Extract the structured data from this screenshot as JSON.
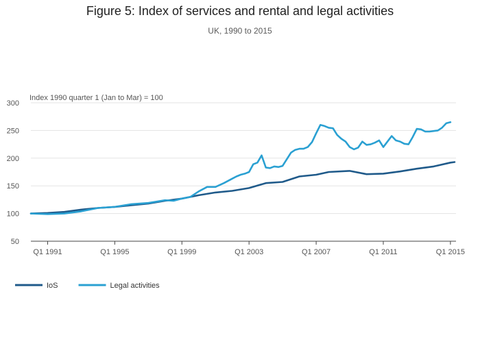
{
  "title": "Figure 5: Index of services and rental and legal activities",
  "subtitle": "UK, 1990 to 2015",
  "chart_data": {
    "type": "line",
    "ylabel": "Index 1990 quarter 1 (Jan to Mar) = 100",
    "ylim": [
      50,
      300
    ],
    "yticks": [
      50,
      100,
      150,
      200,
      250,
      300
    ],
    "xticks": [
      {
        "label": "Q1 1991",
        "q": 4
      },
      {
        "label": "Q1 1995",
        "q": 20
      },
      {
        "label": "Q1 1999",
        "q": 36
      },
      {
        "label": "Q1 2003",
        "q": 52
      },
      {
        "label": "Q1 2007",
        "q": 68
      },
      {
        "label": "Q1 2011",
        "q": 84
      },
      {
        "label": "Q1 2015",
        "q": 100
      }
    ],
    "x_unit": "quarter index (0 = Q1 1990)",
    "grid": true,
    "legend_position": "bottom-left",
    "series": [
      {
        "name": "IoS",
        "color": "#1f5a8a",
        "points": [
          [
            0,
            100
          ],
          [
            4,
            101
          ],
          [
            8,
            103
          ],
          [
            12,
            107
          ],
          [
            16,
            110
          ],
          [
            20,
            112
          ],
          [
            24,
            115
          ],
          [
            28,
            118
          ],
          [
            32,
            123
          ],
          [
            36,
            127
          ],
          [
            40,
            133
          ],
          [
            44,
            138
          ],
          [
            48,
            141
          ],
          [
            52,
            146
          ],
          [
            56,
            155
          ],
          [
            60,
            157
          ],
          [
            64,
            167
          ],
          [
            68,
            170
          ],
          [
            71,
            175
          ],
          [
            76,
            177
          ],
          [
            80,
            171
          ],
          [
            84,
            172
          ],
          [
            88,
            176
          ],
          [
            92,
            181
          ],
          [
            96,
            185
          ],
          [
            100,
            192
          ],
          [
            101,
            193
          ]
        ]
      },
      {
        "name": "Legal activities",
        "color": "#2aa0d2",
        "points": [
          [
            0,
            100
          ],
          [
            4,
            99
          ],
          [
            8,
            100
          ],
          [
            12,
            104
          ],
          [
            16,
            110
          ],
          [
            20,
            112
          ],
          [
            24,
            117
          ],
          [
            28,
            119
          ],
          [
            32,
            124
          ],
          [
            34,
            123
          ],
          [
            36,
            127
          ],
          [
            38,
            130
          ],
          [
            40,
            140
          ],
          [
            42,
            148
          ],
          [
            44,
            148
          ],
          [
            46,
            155
          ],
          [
            48,
            163
          ],
          [
            49,
            167
          ],
          [
            50,
            170
          ],
          [
            51,
            172
          ],
          [
            52,
            175
          ],
          [
            53,
            189
          ],
          [
            54,
            192
          ],
          [
            55,
            205
          ],
          [
            56,
            183
          ],
          [
            57,
            182
          ],
          [
            58,
            185
          ],
          [
            59,
            184
          ],
          [
            60,
            186
          ],
          [
            61,
            198
          ],
          [
            62,
            210
          ],
          [
            63,
            215
          ],
          [
            64,
            217
          ],
          [
            65,
            217
          ],
          [
            66,
            220
          ],
          [
            67,
            229
          ],
          [
            68,
            245
          ],
          [
            69,
            260
          ],
          [
            70,
            258
          ],
          [
            71,
            255
          ],
          [
            72,
            254
          ],
          [
            73,
            242
          ],
          [
            74,
            235
          ],
          [
            75,
            230
          ],
          [
            76,
            220
          ],
          [
            77,
            216
          ],
          [
            78,
            219
          ],
          [
            79,
            230
          ],
          [
            80,
            224
          ],
          [
            81,
            225
          ],
          [
            82,
            228
          ],
          [
            83,
            232
          ],
          [
            84,
            220
          ],
          [
            85,
            230
          ],
          [
            86,
            240
          ],
          [
            87,
            232
          ],
          [
            88,
            230
          ],
          [
            89,
            226
          ],
          [
            90,
            225
          ],
          [
            91,
            238
          ],
          [
            92,
            253
          ],
          [
            93,
            252
          ],
          [
            94,
            248
          ],
          [
            95,
            248
          ],
          [
            96,
            249
          ],
          [
            97,
            250
          ],
          [
            98,
            255
          ],
          [
            99,
            263
          ],
          [
            100,
            265
          ]
        ]
      }
    ]
  }
}
